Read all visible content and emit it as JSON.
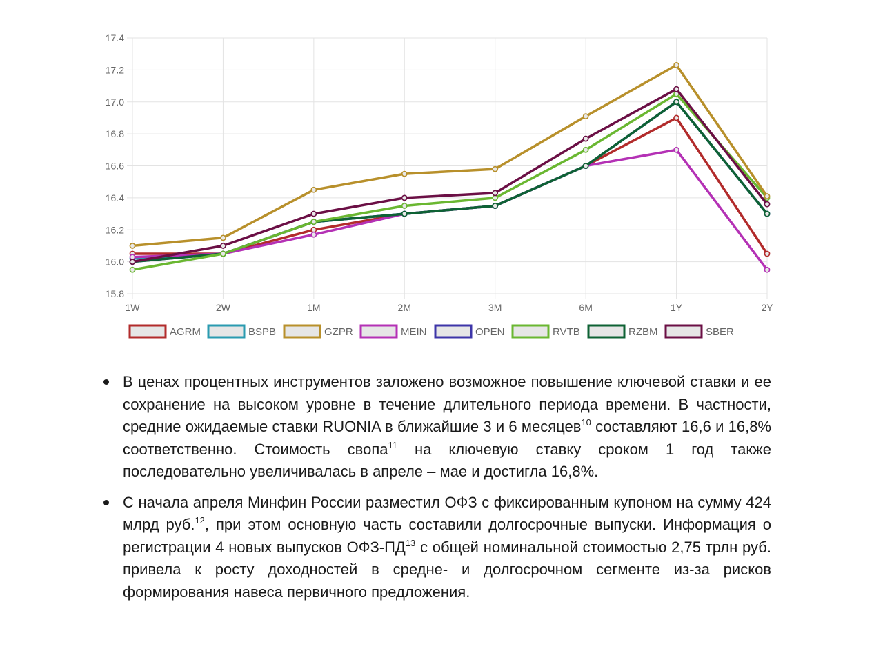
{
  "chart_data": {
    "type": "line",
    "categories": [
      "1W",
      "2W",
      "1M",
      "2M",
      "3M",
      "6M",
      "1Y",
      "2Y"
    ],
    "ylim": [
      15.8,
      17.4
    ],
    "yticks": [
      "17.4",
      "17.2",
      "17.0",
      "16.8",
      "16.6",
      "16.4",
      "16.2",
      "16.0",
      "15.8"
    ],
    "grid": true,
    "legend_position": "bottom",
    "series": [
      {
        "name": "AGRM",
        "color": "#b22b2b",
        "values": [
          16.05,
          16.05,
          16.2,
          16.3,
          16.35,
          16.6,
          16.9,
          16.05
        ]
      },
      {
        "name": "BSPB",
        "color": "#2a9bb0",
        "values": [
          16.02,
          16.05,
          16.25,
          16.3,
          16.35,
          16.6,
          17.0,
          16.3
        ]
      },
      {
        "name": "MEIN",
        "color": "#b431b5",
        "values": [
          16.03,
          16.05,
          16.17,
          16.3,
          16.35,
          16.6,
          16.7,
          15.95
        ]
      },
      {
        "name": "OPEN",
        "color": "#3d35a8",
        "values": [
          16.0,
          16.05,
          16.25,
          16.3,
          16.35,
          16.6,
          17.0,
          16.3
        ]
      },
      {
        "name": "RZBM",
        "color": "#0e6234",
        "values": [
          16.0,
          16.05,
          16.25,
          16.3,
          16.35,
          16.6,
          17.0,
          16.3
        ]
      },
      {
        "name": "RVTB",
        "color": "#6ab731",
        "values": [
          15.95,
          16.05,
          16.25,
          16.35,
          16.4,
          16.7,
          17.05,
          16.4
        ]
      },
      {
        "name": "SBER",
        "color": "#6b0f45",
        "values": [
          16.0,
          16.1,
          16.3,
          16.4,
          16.43,
          16.77,
          17.08,
          16.36
        ]
      },
      {
        "name": "GZPR",
        "color": "#b8902b",
        "values": [
          16.1,
          16.15,
          16.45,
          16.55,
          16.58,
          16.91,
          17.23,
          16.41
        ]
      }
    ],
    "legend": [
      {
        "name": "AGRM",
        "color": "#b22b2b"
      },
      {
        "name": "BSPB",
        "color": "#2a9bb0"
      },
      {
        "name": "GZPR",
        "color": "#b8902b"
      },
      {
        "name": "MEIN",
        "color": "#b431b5"
      },
      {
        "name": "OPEN",
        "color": "#3d35a8"
      },
      {
        "name": "RVTB",
        "color": "#6ab731"
      },
      {
        "name": "RZBM",
        "color": "#0e6234"
      },
      {
        "name": "SBER",
        "color": "#6b0f45"
      }
    ]
  },
  "bullets": [
    {
      "seg1": "В ценах процентных инструментов заложено возможное повышение ключевой ставки и ее сохранение на высоком уровне в течение длительного периода времени. В частности, средние ожидаемые ставки RUONIA в ближайшие 3 и 6 месяцев",
      "sup1": "10",
      "seg2": " составляют 16,6 и 16,8% соответственно. Стоимость свопа",
      "sup2": "11",
      "seg3": " на ключевую ставку сроком 1 год также последовательно увеличивалась в апреле – мае и достигла 16,8%."
    },
    {
      "seg1": "С начала апреля Минфин России разместил ОФЗ с фиксированным купоном на сумму 424 млрд руб.",
      "sup1": "12",
      "seg2": ", при этом основную часть составили долгосрочные выпуски. Информация о регистрации 4 новых выпусков ОФЗ-ПД",
      "sup2": "13",
      "seg3": " с общей номинальной стоимостью 2,75 трлн руб. привела к росту доходностей в средне- и долгосрочном сегменте из-за рисков формирования навеса первичного предложения."
    }
  ]
}
